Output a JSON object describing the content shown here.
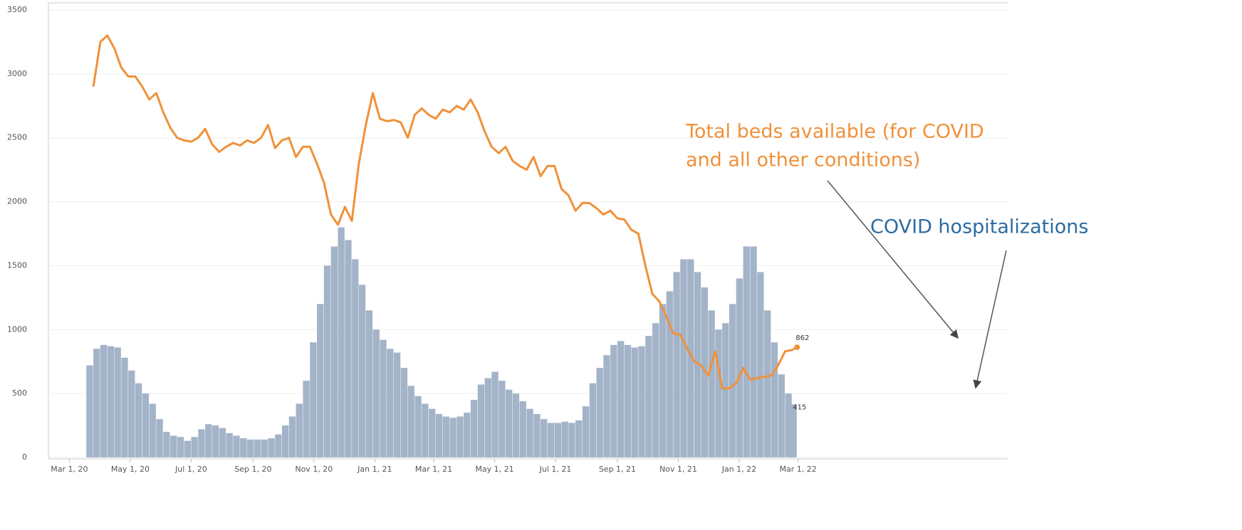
{
  "chart_data": {
    "type": "bar-line",
    "x": [
      "2020-03-25",
      "2020-04-01",
      "2020-04-08",
      "2020-04-15",
      "2020-04-22",
      "2020-04-29",
      "2020-05-06",
      "2020-05-13",
      "2020-05-20",
      "2020-05-27",
      "2020-06-03",
      "2020-06-10",
      "2020-06-17",
      "2020-06-24",
      "2020-07-01",
      "2020-07-08",
      "2020-07-15",
      "2020-07-22",
      "2020-07-29",
      "2020-08-05",
      "2020-08-12",
      "2020-08-19",
      "2020-08-26",
      "2020-09-02",
      "2020-09-09",
      "2020-09-16",
      "2020-09-23",
      "2020-09-30",
      "2020-10-07",
      "2020-10-14",
      "2020-10-21",
      "2020-10-28",
      "2020-11-04",
      "2020-11-11",
      "2020-11-18",
      "2020-11-25",
      "2020-12-02",
      "2020-12-09",
      "2020-12-16",
      "2020-12-23",
      "2020-12-30",
      "2021-01-06",
      "2021-01-13",
      "2021-01-20",
      "2021-01-27",
      "2021-02-03",
      "2021-02-10",
      "2021-02-17",
      "2021-02-24",
      "2021-03-03",
      "2021-03-10",
      "2021-03-17",
      "2021-03-24",
      "2021-03-31",
      "2021-04-07",
      "2021-04-14",
      "2021-04-21",
      "2021-04-28",
      "2021-05-05",
      "2021-05-12",
      "2021-05-19",
      "2021-05-26",
      "2021-06-02",
      "2021-06-09",
      "2021-06-16",
      "2021-06-23",
      "2021-06-30",
      "2021-07-07",
      "2021-07-14",
      "2021-07-21",
      "2021-07-28",
      "2021-08-04",
      "2021-08-11",
      "2021-08-18",
      "2021-08-25",
      "2021-09-01",
      "2021-09-08",
      "2021-09-15",
      "2021-09-22",
      "2021-09-29",
      "2021-10-06",
      "2021-10-13",
      "2021-10-20",
      "2021-10-27",
      "2021-11-03",
      "2021-11-10",
      "2021-11-17",
      "2021-11-24",
      "2021-12-01",
      "2021-12-08",
      "2021-12-15",
      "2021-12-22",
      "2021-12-29",
      "2022-01-05",
      "2022-01-12",
      "2022-01-19",
      "2022-01-26",
      "2022-02-02",
      "2022-02-09",
      "2022-02-16",
      "2022-02-23",
      "2022-02-28"
    ],
    "series": [
      {
        "name": "COVID hospitalizations",
        "kind": "bar",
        "color": "#a3b3c8",
        "values": [
          720,
          850,
          880,
          870,
          860,
          780,
          680,
          580,
          500,
          420,
          300,
          200,
          170,
          160,
          130,
          160,
          220,
          260,
          250,
          230,
          190,
          170,
          150,
          140,
          140,
          140,
          150,
          180,
          250,
          320,
          420,
          600,
          900,
          1200,
          1500,
          1650,
          1800,
          1700,
          1550,
          1350,
          1150,
          1000,
          920,
          850,
          820,
          700,
          560,
          480,
          420,
          380,
          340,
          320,
          310,
          320,
          350,
          450,
          570,
          620,
          670,
          600,
          530,
          500,
          440,
          380,
          340,
          300,
          270,
          270,
          280,
          270,
          290,
          400,
          580,
          700,
          800,
          880,
          910,
          880,
          860,
          870,
          950,
          1050,
          1200,
          1300,
          1450,
          1550,
          1550,
          1450,
          1330,
          1150,
          1000,
          1050,
          1200,
          1400,
          1650,
          1650,
          1450,
          1150,
          900,
          650,
          500,
          415
        ]
      },
      {
        "name": "Total beds available (for COVID and all other conditions)",
        "kind": "line",
        "color": "#f0913a",
        "values": [
          2900,
          3250,
          3300,
          3200,
          3050,
          2980,
          2980,
          2900,
          2800,
          2850,
          2700,
          2580,
          2500,
          2480,
          2470,
          2500,
          2570,
          2450,
          2390,
          2430,
          2460,
          2440,
          2480,
          2460,
          2500,
          2600,
          2420,
          2480,
          2500,
          2350,
          2430,
          2430,
          2300,
          2150,
          1900,
          1820,
          1960,
          1850,
          2300,
          2600,
          2850,
          2650,
          2630,
          2640,
          2620,
          2500,
          2680,
          2730,
          2680,
          2650,
          2720,
          2700,
          2750,
          2720,
          2800,
          2700,
          2550,
          2430,
          2380,
          2430,
          2320,
          2280,
          2250,
          2350,
          2200,
          2280,
          2280,
          2100,
          2050,
          1930,
          1990,
          1990,
          1950,
          1900,
          1930,
          1870,
          1860,
          1780,
          1750,
          1500,
          1280,
          1220,
          1100,
          970,
          960,
          850,
          750,
          720,
          640,
          830,
          540,
          540,
          580,
          700,
          610,
          620,
          630,
          640,
          720,
          830,
          840,
          862
        ]
      }
    ],
    "beds_label": [
      "Total beds available (for COVID",
      "and all other conditions)"
    ],
    "hosp_label": "COVID hospitalizations",
    "xlim": [
      "2020-02-09",
      "2022-09-27"
    ],
    "xticks": [
      {
        "value": "2020-03-01",
        "label": "Mar 1, 20"
      },
      {
        "value": "2020-05-01",
        "label": "May 1, 20"
      },
      {
        "value": "2020-07-01",
        "label": "Jul 1, 20"
      },
      {
        "value": "2020-09-01",
        "label": "Sep 1, 20"
      },
      {
        "value": "2020-11-01",
        "label": "Nov 1, 20"
      },
      {
        "value": "2021-01-01",
        "label": "Jan 1, 21"
      },
      {
        "value": "2021-03-01",
        "label": "Mar 1, 21"
      },
      {
        "value": "2021-05-01",
        "label": "May 1, 21"
      },
      {
        "value": "2021-07-01",
        "label": "Jul 1, 21"
      },
      {
        "value": "2021-09-01",
        "label": "Sep 1, 21"
      },
      {
        "value": "2021-11-01",
        "label": "Nov 1, 21"
      },
      {
        "value": "2022-01-01",
        "label": "Jan 1, 22"
      },
      {
        "value": "2022-03-01",
        "label": "Mar 1, 22"
      }
    ],
    "ylim": [
      0,
      3500
    ],
    "yticks": [
      0,
      500,
      1000,
      1500,
      2000,
      2500,
      3000,
      3500
    ],
    "grid": true
  }
}
